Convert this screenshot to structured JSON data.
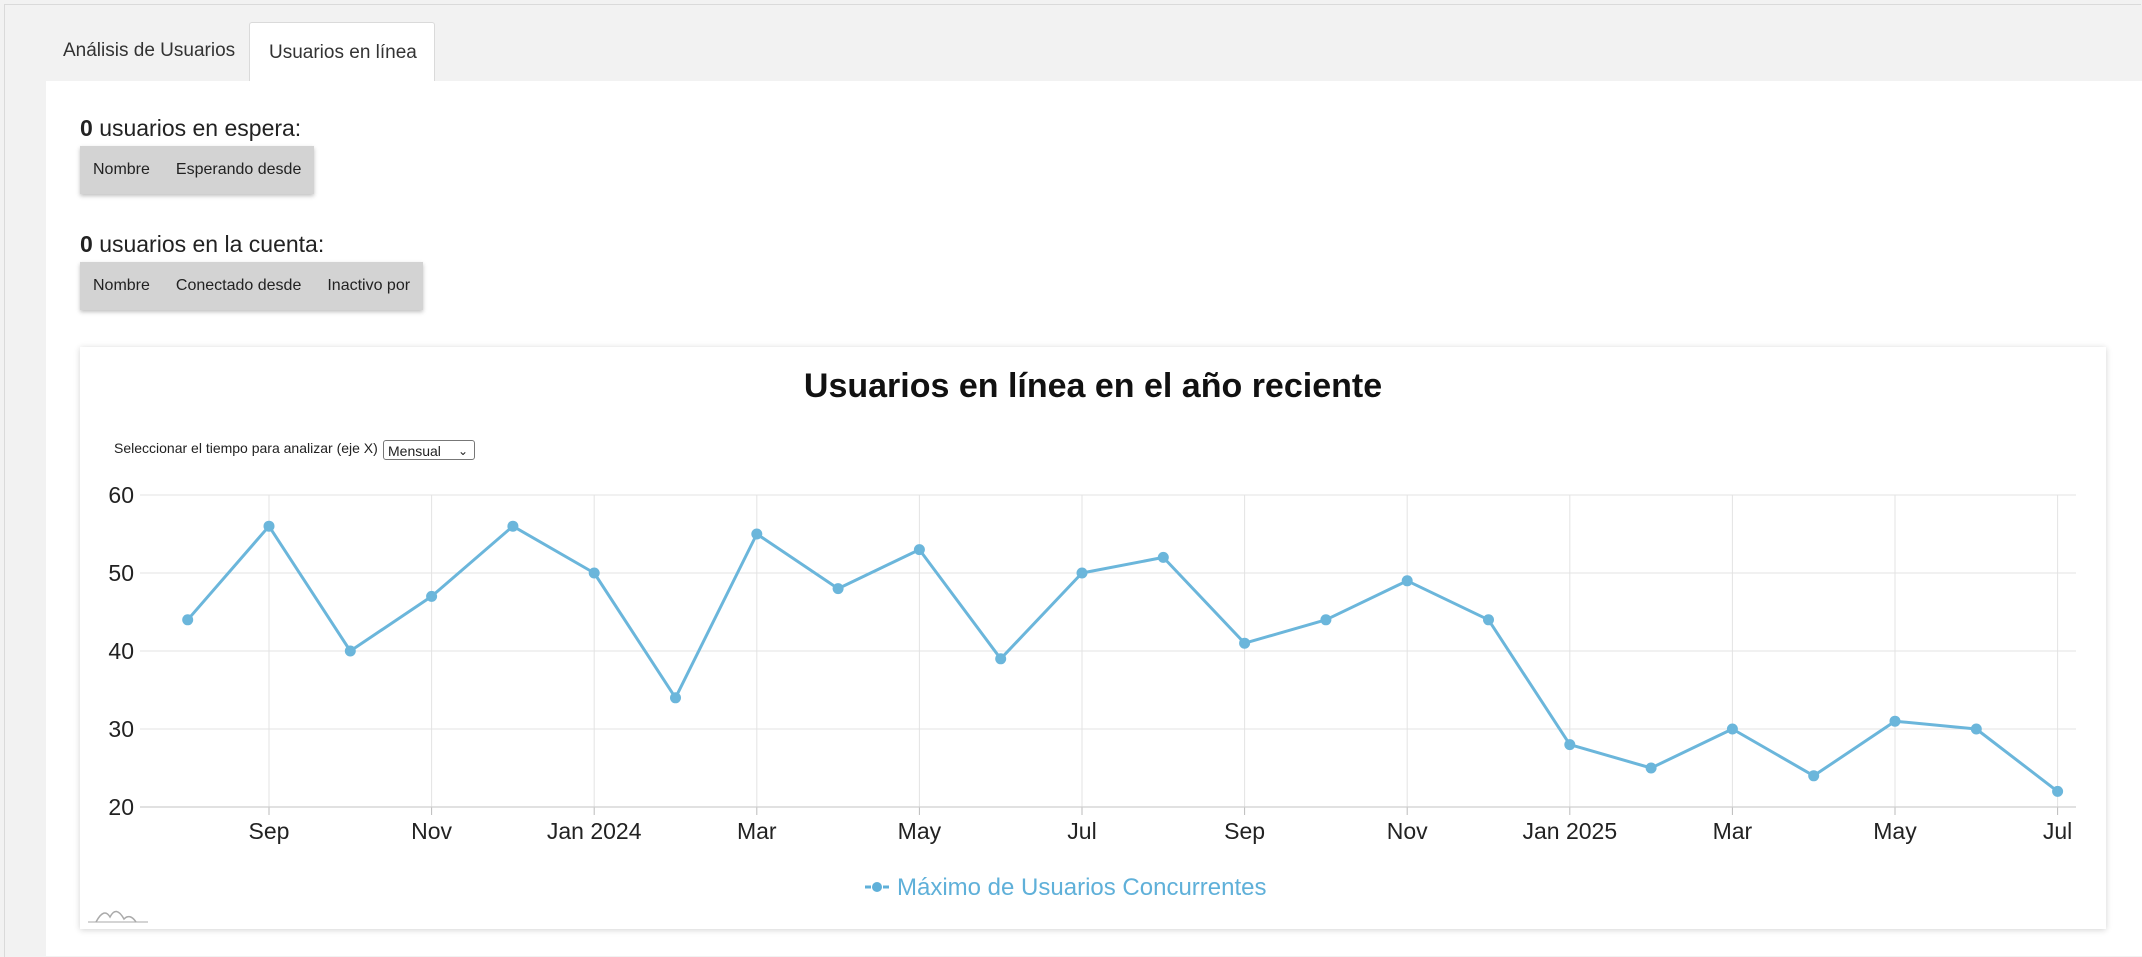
{
  "tabs": [
    {
      "label": "Análisis de Usuarios"
    },
    {
      "label": "Usuarios en línea"
    }
  ],
  "waiting": {
    "count": "0",
    "label": "usuarios en espera:",
    "columns": [
      "Nombre",
      "Esperando desde"
    ]
  },
  "account": {
    "count": "0",
    "label": "usuarios en la cuenta:",
    "columns": [
      "Nombre",
      "Conectado desde",
      "Inactivo por"
    ]
  },
  "selector": {
    "label": "Seleccionar el tiempo para analizar (eje X)",
    "value": "Mensual"
  },
  "colors": {
    "series": "#6bb6db",
    "legend": "#5fb0d9"
  },
  "icons": {
    "select": "chevron-down-icon",
    "credit": "chart-logo-icon"
  },
  "chart_data": {
    "type": "line",
    "title": "Usuarios en línea en el año reciente",
    "x_ticks": [
      "Sep",
      "Nov",
      "Jan 2024",
      "Mar",
      "May",
      "Jul",
      "Sep",
      "Nov",
      "Jan 2025",
      "Mar",
      "May",
      "Jul"
    ],
    "y_ticks": [
      "60",
      "50",
      "40",
      "30",
      "20"
    ],
    "ylim": [
      20,
      60
    ],
    "grid": true,
    "legend_position": "bottom-center",
    "series": [
      {
        "name": "Máximo de Usuarios Concurrentes",
        "x": [
          "2023-08",
          "2023-09",
          "2023-10",
          "2023-11",
          "2023-12",
          "2024-01",
          "2024-02",
          "2024-03",
          "2024-04",
          "2024-05",
          "2024-06",
          "2024-07",
          "2024-08",
          "2024-09",
          "2024-10",
          "2024-11",
          "2024-12",
          "2025-01",
          "2025-02",
          "2025-03",
          "2025-04",
          "2025-05",
          "2025-06",
          "2025-07"
        ],
        "values": [
          44,
          56,
          40,
          47,
          56,
          50,
          34,
          55,
          48,
          53,
          39,
          50,
          52,
          41,
          44,
          49,
          44,
          28,
          25,
          30,
          24,
          31,
          30,
          22
        ]
      }
    ]
  }
}
